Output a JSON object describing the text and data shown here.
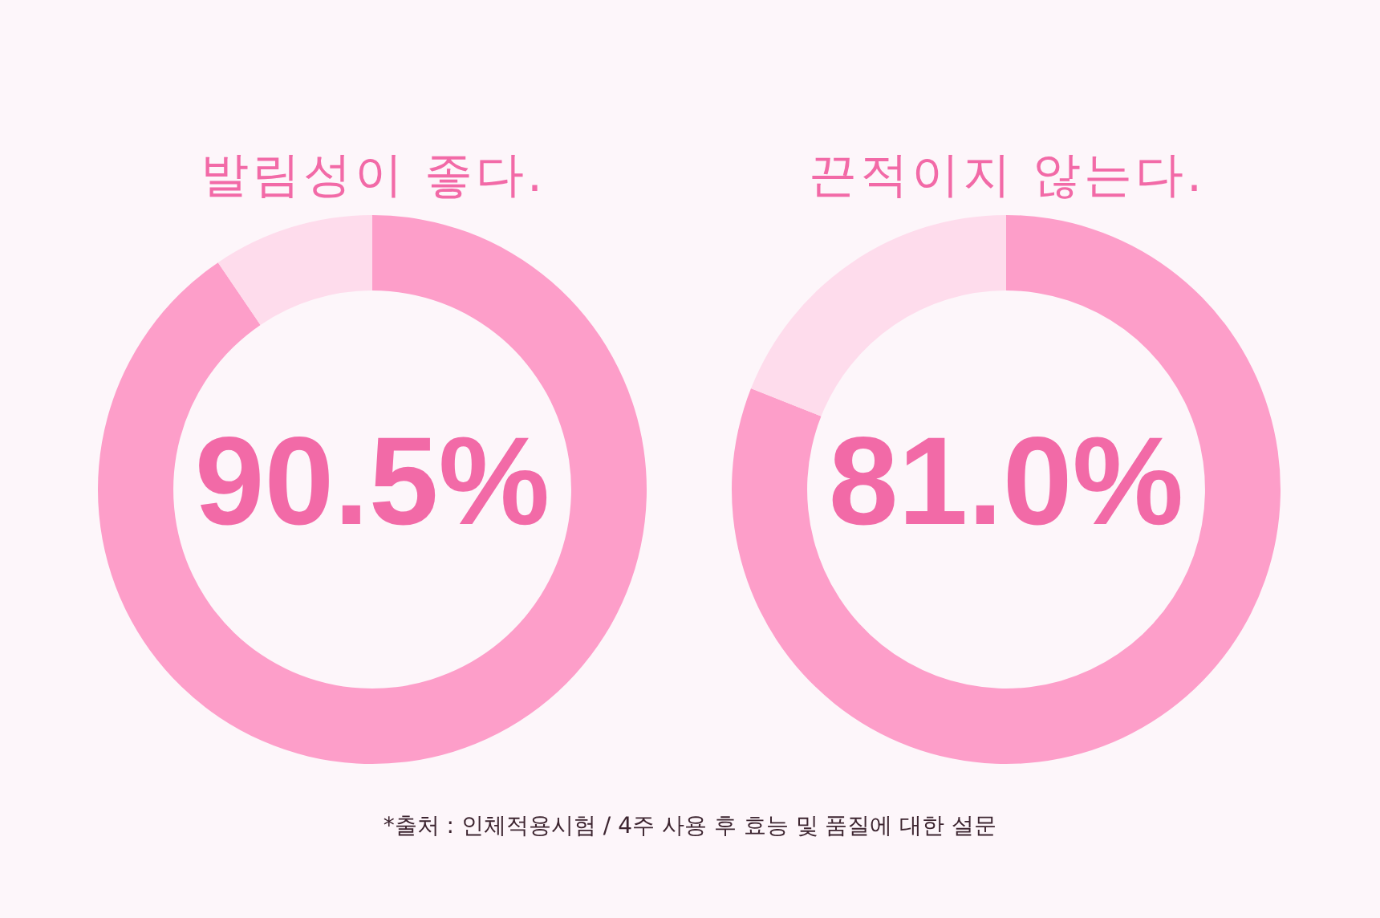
{
  "chart_data": [
    {
      "type": "donut",
      "title": "발림성이 좋다.",
      "categories": [
        null,
        null
      ],
      "values": [
        90.5,
        9.5
      ],
      "colors": [
        "#fd9ec9",
        "#fedcec"
      ],
      "value_labels": [
        "90.5%",
        null
      ],
      "legend": false,
      "annotations": [
        "*출처 : 인체적용시험 / 4주 사용 후 효능 및 품질에 대한 설문"
      ]
    },
    {
      "type": "donut",
      "title": "끈적이지 않는다.",
      "categories": [
        null,
        null
      ],
      "values": [
        81.0,
        19.0
      ],
      "colors": [
        "#fd9ec9",
        "#fedcec"
      ],
      "value_labels": [
        "81.0%",
        null
      ],
      "legend": false
    }
  ]
}
